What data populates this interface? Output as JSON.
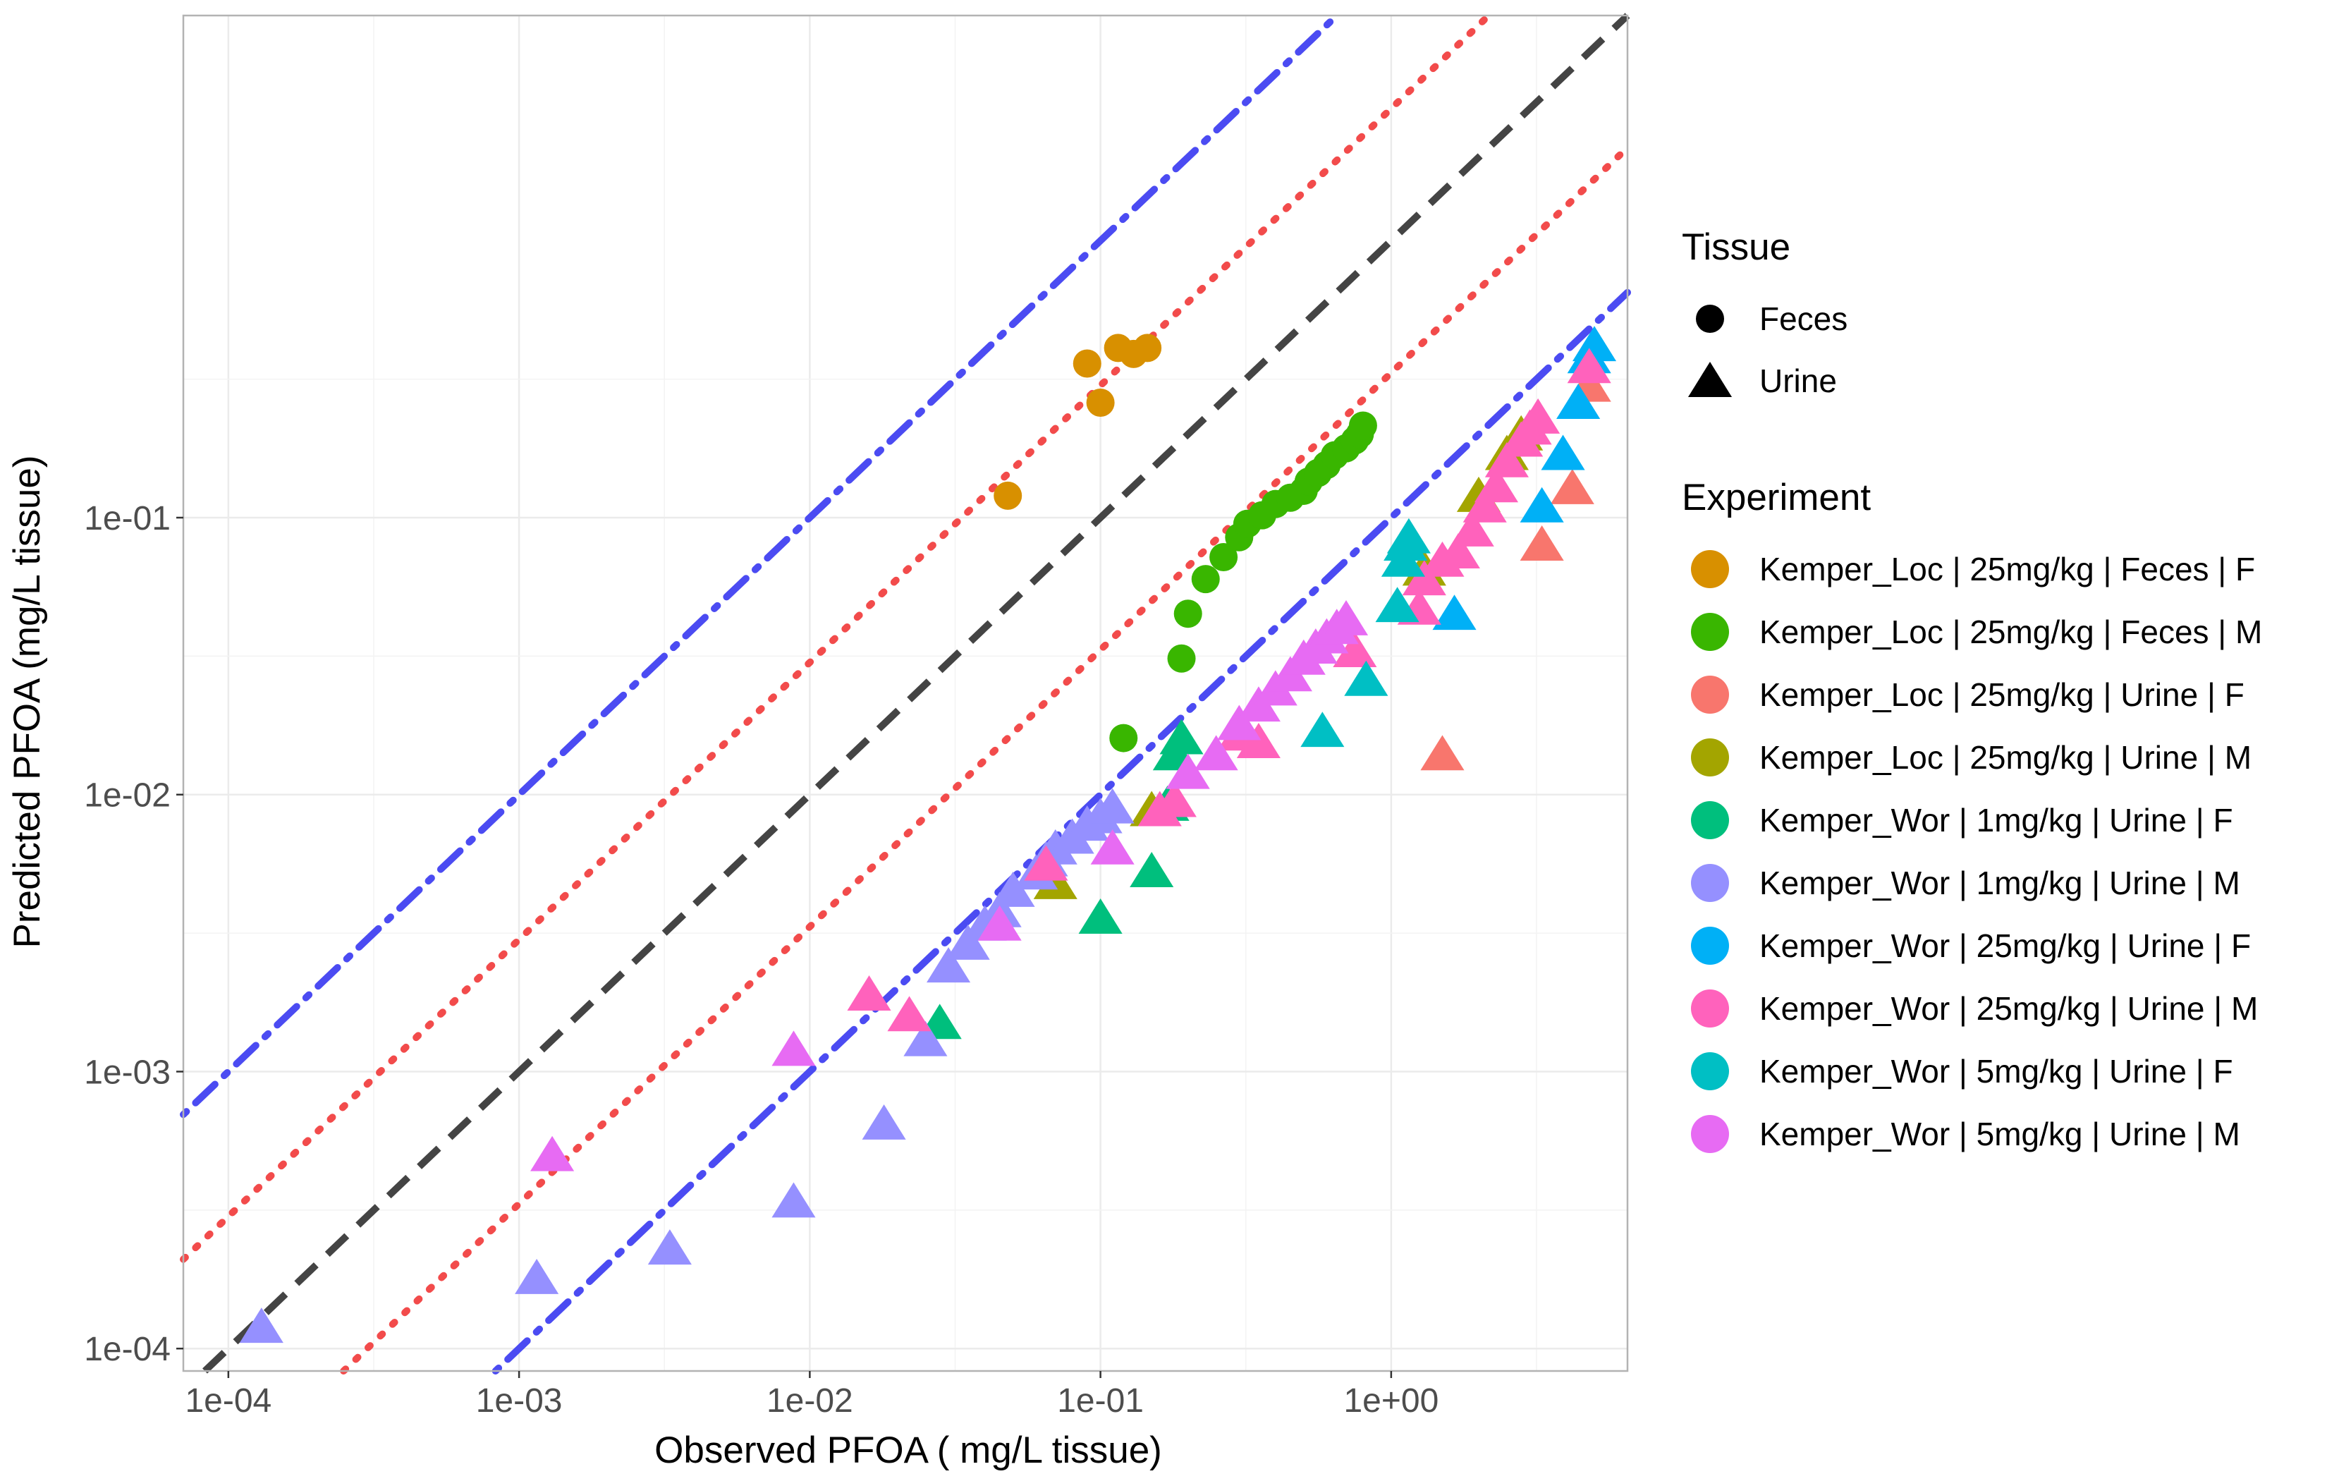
{
  "chart_data": {
    "type": "scatter",
    "xlabel": "Observed PFOA ( mg/L tissue)",
    "ylabel": "Predicted PFOA (mg/L tissue)",
    "x_scale": "log10",
    "y_scale": "log10",
    "xlim": [
      7e-05,
      6.5
    ],
    "ylim": [
      8.3e-05,
      6.5
    ],
    "grid": true,
    "x_ticks": [
      {
        "value": 0.0001,
        "label": "1e-04"
      },
      {
        "value": 0.001,
        "label": "1e-03"
      },
      {
        "value": 0.01,
        "label": "1e-02"
      },
      {
        "value": 0.1,
        "label": "1e-01"
      },
      {
        "value": 1,
        "label": "1e+00"
      }
    ],
    "y_ticks": [
      {
        "value": 0.0001,
        "label": "1e-04"
      },
      {
        "value": 0.001,
        "label": "1e-03"
      },
      {
        "value": 0.01,
        "label": "1e-02"
      },
      {
        "value": 0.1,
        "label": "1e-01"
      }
    ],
    "reference_lines": [
      {
        "kind": "identity",
        "factor": 1,
        "style": "dashed",
        "color": "#444444"
      },
      {
        "kind": "fold",
        "factor": 3,
        "style": "dotted",
        "color": "#f24b4b"
      },
      {
        "kind": "fold",
        "factor": 0.3333,
        "style": "dotted",
        "color": "#f24b4b"
      },
      {
        "kind": "fold",
        "factor": 10,
        "style": "dot-dash",
        "color": "#4b4bf2"
      },
      {
        "kind": "fold",
        "factor": 0.1,
        "style": "dot-dash",
        "color": "#4b4bf2"
      }
    ],
    "legend_placement": "right",
    "shape_legend": {
      "title": "Tissue",
      "items": [
        {
          "label": "Feces",
          "shape": "circle"
        },
        {
          "label": "Urine",
          "shape": "triangle"
        }
      ]
    },
    "color_legend": {
      "title": "Experiment"
    },
    "series": [
      {
        "name": "Kemper_Loc | 25mg/kg | Feces | F",
        "color": "#D89000",
        "shape": "circle",
        "points": [
          [
            0.048,
            0.12
          ],
          [
            0.09,
            0.36
          ],
          [
            0.1,
            0.26
          ],
          [
            0.115,
            0.41
          ],
          [
            0.13,
            0.39
          ],
          [
            0.145,
            0.41
          ]
        ]
      },
      {
        "name": "Kemper_Loc | 25mg/kg | Feces | M",
        "color": "#39B600",
        "shape": "circle",
        "points": [
          [
            0.12,
            0.016
          ],
          [
            0.19,
            0.031
          ],
          [
            0.2,
            0.045
          ],
          [
            0.23,
            0.06
          ],
          [
            0.265,
            0.072
          ],
          [
            0.3,
            0.085
          ],
          [
            0.32,
            0.095
          ],
          [
            0.36,
            0.102
          ],
          [
            0.4,
            0.112
          ],
          [
            0.45,
            0.118
          ],
          [
            0.5,
            0.125
          ],
          [
            0.52,
            0.135
          ],
          [
            0.56,
            0.145
          ],
          [
            0.6,
            0.155
          ],
          [
            0.64,
            0.168
          ],
          [
            0.7,
            0.178
          ],
          [
            0.75,
            0.19
          ],
          [
            0.78,
            0.2
          ],
          [
            0.8,
            0.215
          ]
        ]
      },
      {
        "name": "Kemper_Loc | 25mg/kg | Urine | F",
        "color": "#F8766D",
        "shape": "triangle",
        "points": [
          [
            1.5,
            0.014
          ],
          [
            3.3,
            0.08
          ],
          [
            4.2,
            0.128
          ],
          [
            4.8,
            0.3
          ]
        ]
      },
      {
        "name": "Kemper_Loc | 25mg/kg | Urine | M",
        "color": "#A3A500",
        "shape": "triangle",
        "points": [
          [
            0.07,
            0.0048
          ],
          [
            0.15,
            0.0088
          ],
          [
            1.3,
            0.065
          ],
          [
            2.0,
            0.12
          ],
          [
            2.5,
            0.17
          ],
          [
            2.8,
            0.2
          ]
        ]
      },
      {
        "name": "Kemper_Wor | 1mg/kg | Urine | F",
        "color": "#00BF7D",
        "shape": "triangle",
        "points": [
          [
            0.028,
            0.0015
          ],
          [
            0.1,
            0.0036
          ],
          [
            0.15,
            0.0053
          ],
          [
            0.17,
            0.0092
          ],
          [
            0.18,
            0.014
          ],
          [
            0.19,
            0.016
          ]
        ]
      },
      {
        "name": "Kemper_Wor | 1mg/kg | Urine | M",
        "color": "#9590FF",
        "shape": "triangle",
        "points": [
          [
            0.00013,
            0.00012
          ],
          [
            0.00115,
            0.00018
          ],
          [
            0.0033,
            0.00023
          ],
          [
            0.0088,
            0.00034
          ],
          [
            0.018,
            0.00065
          ],
          [
            0.025,
            0.0013
          ],
          [
            0.03,
            0.0024
          ],
          [
            0.035,
            0.0029
          ],
          [
            0.04,
            0.0034
          ],
          [
            0.045,
            0.0038
          ],
          [
            0.05,
            0.0045
          ],
          [
            0.06,
            0.0052
          ],
          [
            0.065,
            0.0058
          ],
          [
            0.07,
            0.0064
          ],
          [
            0.08,
            0.007
          ],
          [
            0.09,
            0.0078
          ],
          [
            0.1,
            0.0083
          ],
          [
            0.11,
            0.009
          ]
        ]
      },
      {
        "name": "Kemper_Wor | 25mg/kg | Urine | F",
        "color": "#00B0F6",
        "shape": "triangle",
        "points": [
          [
            1.65,
            0.045
          ],
          [
            3.3,
            0.11
          ],
          [
            3.9,
            0.17
          ],
          [
            4.4,
            0.26
          ],
          [
            4.8,
            0.38
          ],
          [
            5.0,
            0.42
          ]
        ]
      },
      {
        "name": "Kemper_Wor | 25mg/kg | Urine | M",
        "color": "#FF62BC",
        "shape": "triangle",
        "points": [
          [
            0.016,
            0.0019
          ],
          [
            0.022,
            0.0016
          ],
          [
            0.065,
            0.0056
          ],
          [
            0.16,
            0.0088
          ],
          [
            0.18,
            0.0095
          ],
          [
            0.3,
            0.0165
          ],
          [
            0.35,
            0.0155
          ],
          [
            0.75,
            0.033
          ],
          [
            1.25,
            0.047
          ],
          [
            1.3,
            0.06
          ],
          [
            1.5,
            0.07
          ],
          [
            1.7,
            0.075
          ],
          [
            1.9,
            0.09
          ],
          [
            2.1,
            0.11
          ],
          [
            2.3,
            0.13
          ],
          [
            2.5,
            0.16
          ],
          [
            2.8,
            0.19
          ],
          [
            3.0,
            0.21
          ],
          [
            3.2,
            0.23
          ],
          [
            4.8,
            0.35
          ]
        ]
      },
      {
        "name": "Kemper_Wor | 5mg/kg | Urine | F",
        "color": "#00BFC4",
        "shape": "triangle",
        "points": [
          [
            0.58,
            0.017
          ],
          [
            0.82,
            0.026
          ],
          [
            1.05,
            0.048
          ],
          [
            1.1,
            0.07
          ],
          [
            1.12,
            0.08
          ],
          [
            1.15,
            0.085
          ]
        ]
      },
      {
        "name": "Kemper_Wor | 5mg/kg | Urine | M",
        "color": "#E76BF3",
        "shape": "triangle",
        "points": [
          [
            0.0013,
            0.0005
          ],
          [
            0.0088,
            0.0012
          ],
          [
            0.045,
            0.0034
          ],
          [
            0.11,
            0.0064
          ],
          [
            0.2,
            0.012
          ],
          [
            0.25,
            0.014
          ],
          [
            0.3,
            0.018
          ],
          [
            0.35,
            0.021
          ],
          [
            0.4,
            0.024
          ],
          [
            0.45,
            0.027
          ],
          [
            0.5,
            0.031
          ],
          [
            0.55,
            0.034
          ],
          [
            0.6,
            0.037
          ],
          [
            0.65,
            0.04
          ],
          [
            0.7,
            0.043
          ]
        ]
      }
    ]
  }
}
